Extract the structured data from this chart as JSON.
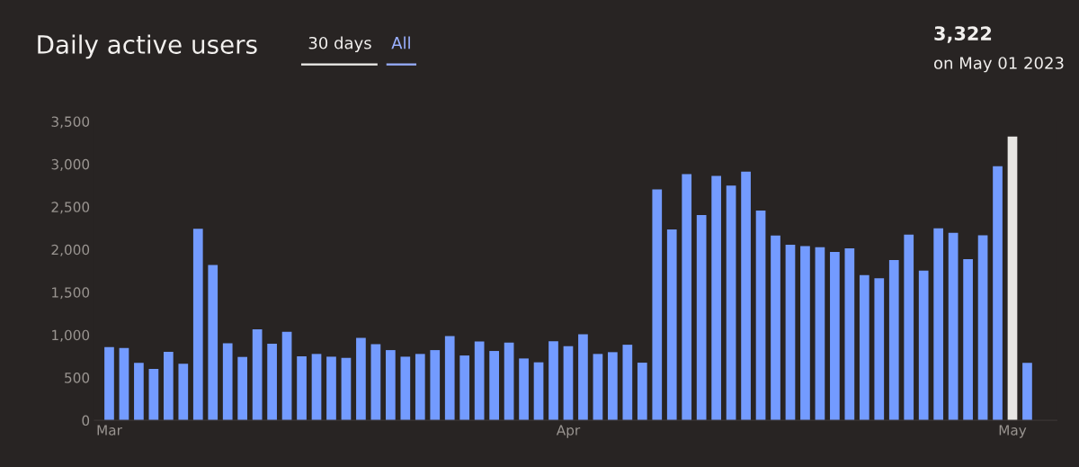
{
  "chart_data": {
    "type": "bar",
    "title": "Daily active users",
    "annotations": [
      "30 days",
      "All",
      "3,322",
      "on May 01 2023"
    ],
    "x": [
      "2023-03-01",
      "2023-03-02",
      "2023-03-03",
      "2023-03-04",
      "2023-03-05",
      "2023-03-06",
      "2023-03-07",
      "2023-03-08",
      "2023-03-09",
      "2023-03-10",
      "2023-03-11",
      "2023-03-12",
      "2023-03-13",
      "2023-03-14",
      "2023-03-15",
      "2023-03-16",
      "2023-03-17",
      "2023-03-18",
      "2023-03-19",
      "2023-03-20",
      "2023-03-21",
      "2023-03-22",
      "2023-03-23",
      "2023-03-24",
      "2023-03-25",
      "2023-03-26",
      "2023-03-27",
      "2023-03-28",
      "2023-03-29",
      "2023-03-30",
      "2023-03-31",
      "2023-04-01",
      "2023-04-02",
      "2023-04-03",
      "2023-04-04",
      "2023-04-05",
      "2023-04-06",
      "2023-04-07",
      "2023-04-08",
      "2023-04-09",
      "2023-04-10",
      "2023-04-11",
      "2023-04-12",
      "2023-04-13",
      "2023-04-14",
      "2023-04-15",
      "2023-04-16",
      "2023-04-17",
      "2023-04-18",
      "2023-04-19",
      "2023-04-20",
      "2023-04-21",
      "2023-04-22",
      "2023-04-23",
      "2023-04-24",
      "2023-04-25",
      "2023-04-26",
      "2023-04-27",
      "2023-04-28",
      "2023-04-29",
      "2023-04-30",
      "2023-05-01",
      "2023-05-02"
    ],
    "values": [
      857,
      847,
      672,
      602,
      801,
      661,
      2243,
      1820,
      903,
      742,
      1064,
      896,
      1036,
      749,
      777,
      745,
      731,
      966,
      892,
      822,
      745,
      777,
      822,
      987,
      759,
      924,
      812,
      910,
      724,
      679,
      927,
      868,
      1008,
      777,
      798,
      885,
      675,
      2705,
      2236,
      2884,
      2404,
      2863,
      2748,
      2912,
      2457,
      2163,
      2055,
      2041,
      2027,
      1971,
      2013,
      1701,
      1663,
      1876,
      2174,
      1754,
      2247,
      2195,
      1887,
      2167,
      2975,
      3322,
      672
    ],
    "colors": [
      "#739bff",
      "#739bff",
      "#739bff",
      "#739bff",
      "#739bff",
      "#739bff",
      "#739bff",
      "#739bff",
      "#739bff",
      "#739bff",
      "#739bff",
      "#739bff",
      "#739bff",
      "#739bff",
      "#739bff",
      "#739bff",
      "#739bff",
      "#739bff",
      "#739bff",
      "#739bff",
      "#739bff",
      "#739bff",
      "#739bff",
      "#739bff",
      "#739bff",
      "#739bff",
      "#739bff",
      "#739bff",
      "#739bff",
      "#739bff",
      "#739bff",
      "#739bff",
      "#739bff",
      "#739bff",
      "#739bff",
      "#739bff",
      "#739bff",
      "#739bff",
      "#739bff",
      "#739bff",
      "#739bff",
      "#739bff",
      "#739bff",
      "#739bff",
      "#739bff",
      "#739bff",
      "#739bff",
      "#739bff",
      "#739bff",
      "#739bff",
      "#739bff",
      "#739bff",
      "#739bff",
      "#739bff",
      "#739bff",
      "#739bff",
      "#739bff",
      "#739bff",
      "#739bff",
      "#739bff",
      "#739bff",
      "#e8e6e3",
      "#739bff"
    ],
    "xlim": [
      "2023-02-28",
      "2023-05-04"
    ],
    "xticks": [
      {
        "value": "2023-03-01",
        "label": "Mar"
      },
      {
        "value": "2023-04-01",
        "label": "Apr"
      },
      {
        "value": "2023-05-01",
        "label": "May"
      }
    ],
    "ylim": [
      0,
      3500
    ],
    "yticks": [
      0,
      500,
      {
        "value": 1000,
        "label": "1,000"
      },
      {
        "value": 1500,
        "label": "1,500"
      },
      {
        "value": 2000,
        "label": "2,000"
      },
      {
        "value": 2500,
        "label": "2,500"
      },
      {
        "value": 3000,
        "label": "3,000"
      },
      {
        "value": 3500,
        "label": "3,500"
      }
    ],
    "grid": false
  }
}
